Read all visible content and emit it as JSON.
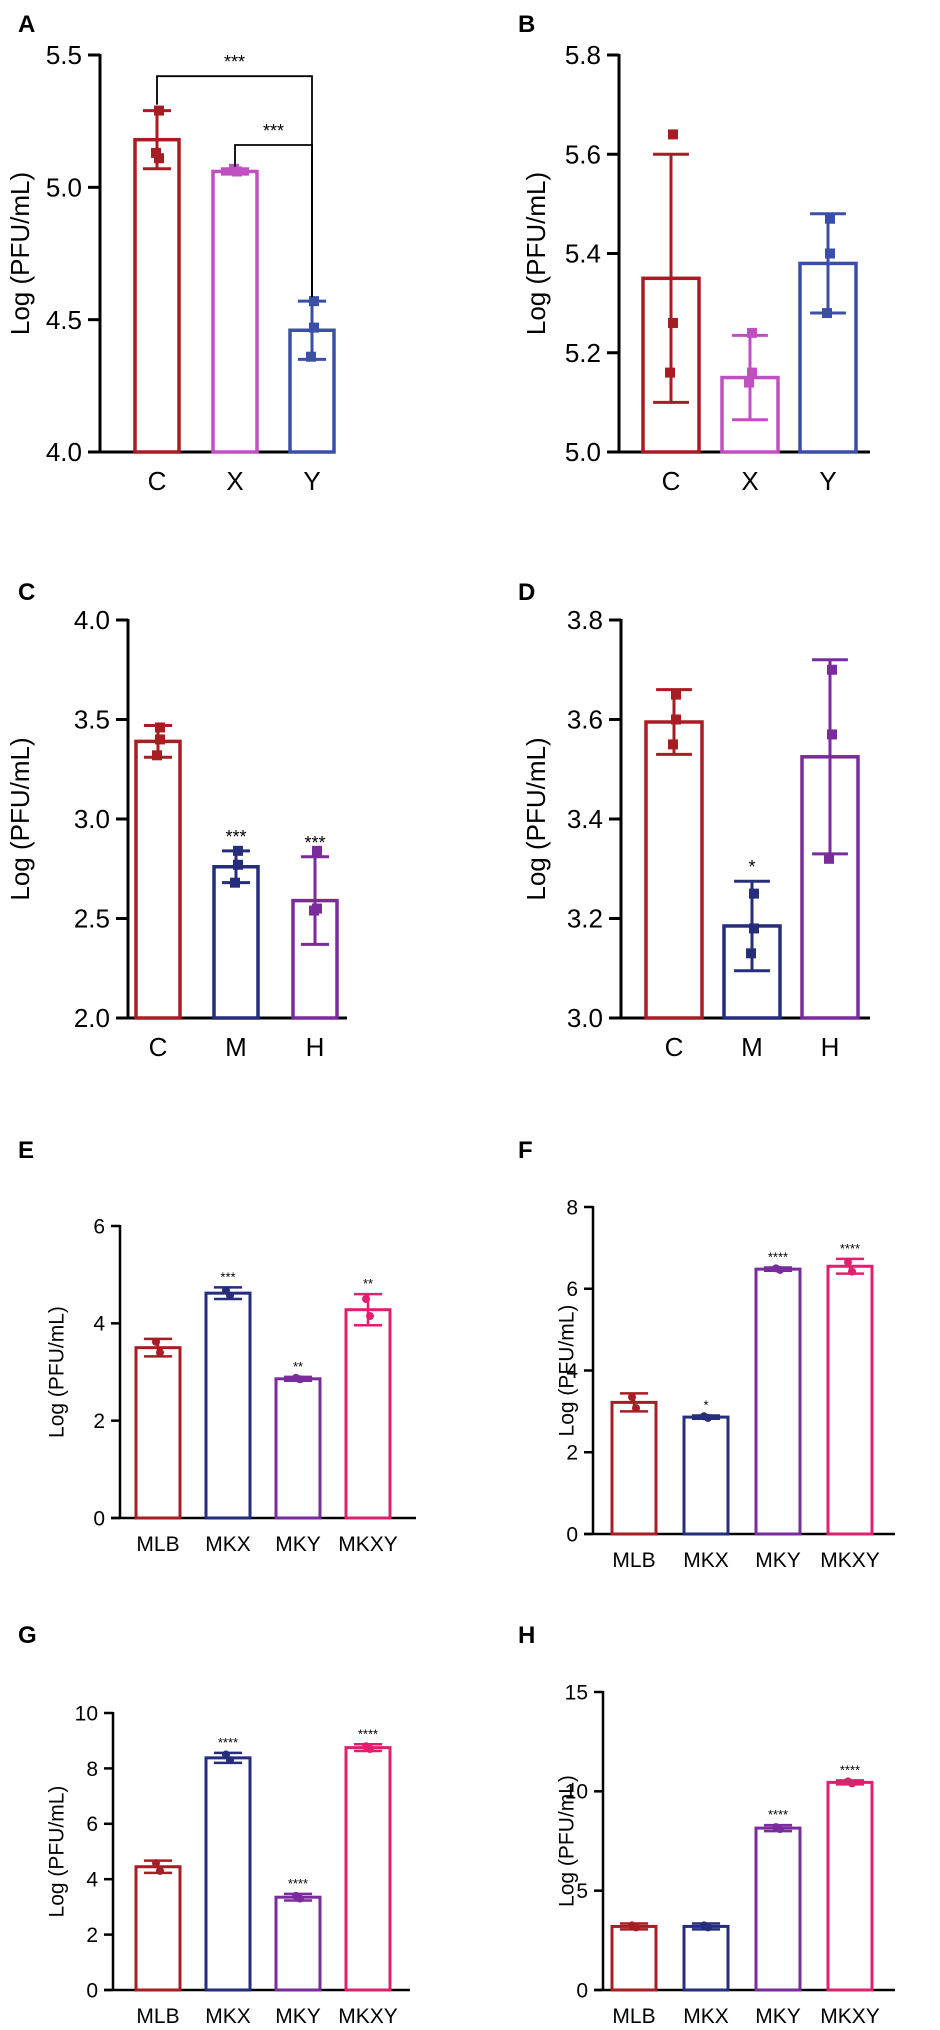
{
  "figure": {
    "colors": {
      "red": "#a81c24",
      "violet": "#c050c0",
      "blue": "#3b4fa8",
      "navy": "#262d7d",
      "purple": "#7a2b9c",
      "pink": "#e0206e",
      "axis": "#000000"
    }
  },
  "chart_data": [
    {
      "panel": "A",
      "type": "bar",
      "title": "",
      "xlabel": "",
      "ylabel": "Log (PFU/mL)",
      "ylim": [
        4.0,
        5.5
      ],
      "yticks": [
        "4.0",
        "4.5",
        "5.0",
        "5.5"
      ],
      "categories": [
        "C",
        "X",
        "Y"
      ],
      "values": [
        5.18,
        5.06,
        4.46
      ],
      "err": [
        0.11,
        0.01,
        0.11
      ],
      "points": [
        [
          5.29,
          5.11,
          5.13
        ],
        [
          5.06,
          5.06,
          5.07
        ],
        [
          4.57,
          4.47,
          4.36
        ]
      ],
      "colors": [
        "#a81c24",
        "#c050c0",
        "#3b4fa8"
      ],
      "brackets": [
        {
          "from": 0,
          "to": 2,
          "level": 5.42,
          "label": "***"
        },
        {
          "from": 1,
          "to": 2,
          "level": 5.16,
          "label": "***"
        }
      ]
    },
    {
      "panel": "B",
      "type": "bar",
      "title": "",
      "xlabel": "",
      "ylabel": "Log (PFU/mL)",
      "ylim": [
        5.0,
        5.8
      ],
      "yticks": [
        "5.0",
        "5.2",
        "5.4",
        "5.6",
        "5.8"
      ],
      "categories": [
        "C",
        "X",
        "Y"
      ],
      "values": [
        5.35,
        5.15,
        5.38
      ],
      "err": [
        0.25,
        0.085,
        0.1
      ],
      "points": [
        [
          5.64,
          5.26,
          5.16
        ],
        [
          5.24,
          5.16,
          5.14
        ],
        [
          5.47,
          5.4,
          5.28
        ]
      ],
      "colors": [
        "#a81c24",
        "#c050c0",
        "#3b4fa8"
      ]
    },
    {
      "panel": "C",
      "type": "bar",
      "title": "",
      "xlabel": "",
      "ylabel": "Log (PFU/mL)",
      "ylim": [
        2.0,
        4.0
      ],
      "yticks": [
        "2.0",
        "2.5",
        "3.0",
        "3.5",
        "4.0"
      ],
      "categories": [
        "C",
        "M",
        "H"
      ],
      "values": [
        3.39,
        2.76,
        2.59
      ],
      "err": [
        0.08,
        0.08,
        0.22
      ],
      "points": [
        [
          3.46,
          3.4,
          3.32
        ],
        [
          2.84,
          2.77,
          2.68
        ],
        [
          2.84,
          2.55,
          2.54
        ]
      ],
      "colors": [
        "#a81c24",
        "#262d7d",
        "#7a2b9c"
      ],
      "sig": [
        "",
        "***",
        "***"
      ]
    },
    {
      "panel": "D",
      "type": "bar",
      "title": "",
      "xlabel": "",
      "ylabel": "Log (PFU/mL)",
      "ylim": [
        3.0,
        3.8
      ],
      "yticks": [
        "3.0",
        "3.2",
        "3.4",
        "3.6",
        "3.8"
      ],
      "categories": [
        "C",
        "M",
        "H"
      ],
      "values": [
        3.595,
        3.185,
        3.525
      ],
      "err": [
        0.065,
        0.09,
        0.195
      ],
      "points": [
        [
          3.65,
          3.6,
          3.55
        ],
        [
          3.25,
          3.18,
          3.13
        ],
        [
          3.7,
          3.57,
          3.32
        ]
      ],
      "colors": [
        "#a81c24",
        "#262d7d",
        "#7a2b9c"
      ],
      "sig": [
        "",
        "*",
        ""
      ]
    },
    {
      "panel": "E",
      "type": "bar",
      "title": "",
      "xlabel": "",
      "ylabel": "Log (PFU/mL)",
      "ylim": [
        0,
        6
      ],
      "yticks": [
        "0",
        "2",
        "4",
        "6"
      ],
      "categories": [
        "MLB",
        "MKX",
        "MKY",
        "MKXY"
      ],
      "values": [
        3.5,
        4.62,
        2.86,
        4.28
      ],
      "err": [
        0.18,
        0.12,
        0.04,
        0.32
      ],
      "points": [
        [
          3.62,
          3.4
        ],
        [
          4.68,
          4.57
        ],
        [
          2.88,
          2.85
        ],
        [
          4.5,
          4.15
        ]
      ],
      "colors": [
        "#a81c24",
        "#262d7d",
        "#7a2b9c",
        "#e0206e"
      ],
      "sig": [
        "",
        "***",
        "**",
        "**"
      ]
    },
    {
      "panel": "F",
      "type": "bar",
      "title": "",
      "xlabel": "",
      "ylabel": "Log (PFU/mL)",
      "ylim": [
        0,
        8
      ],
      "yticks": [
        "0",
        "2",
        "4",
        "6",
        "8"
      ],
      "categories": [
        "MLB",
        "MKX",
        "MKY",
        "MKXY"
      ],
      "values": [
        3.22,
        2.86,
        6.48,
        6.55
      ],
      "err": [
        0.22,
        0.04,
        0.04,
        0.18
      ],
      "points": [
        [
          3.35,
          3.08
        ],
        [
          2.88,
          2.84
        ],
        [
          6.5,
          6.46
        ],
        [
          6.65,
          6.42
        ]
      ],
      "colors": [
        "#a81c24",
        "#262d7d",
        "#7a2b9c",
        "#e0206e"
      ],
      "sig": [
        "",
        "*",
        "****",
        "****"
      ]
    },
    {
      "panel": "G",
      "type": "bar",
      "title": "",
      "xlabel": "",
      "ylabel": "Log (PFU/mL)",
      "ylim": [
        0,
        10
      ],
      "yticks": [
        "0",
        "2",
        "4",
        "6",
        "8",
        "10"
      ],
      "categories": [
        "MLB",
        "MKX",
        "MKY",
        "MKXY"
      ],
      "values": [
        4.45,
        8.38,
        3.35,
        8.75
      ],
      "err": [
        0.22,
        0.18,
        0.12,
        0.12
      ],
      "points": [
        [
          4.58,
          4.3
        ],
        [
          8.5,
          8.3
        ],
        [
          3.4,
          3.3
        ],
        [
          8.8,
          8.7
        ]
      ],
      "colors": [
        "#a81c24",
        "#262d7d",
        "#7a2b9c",
        "#e0206e"
      ],
      "sig": [
        "",
        "****",
        "****",
        "****"
      ]
    },
    {
      "panel": "H",
      "type": "bar",
      "title": "",
      "xlabel": "",
      "ylabel": "Log (PFU/mL)",
      "ylim": [
        0,
        15
      ],
      "yticks": [
        "0",
        "5",
        "10",
        "15"
      ],
      "categories": [
        "MLB",
        "MKX",
        "MKY",
        "MKXY"
      ],
      "values": [
        3.2,
        3.2,
        8.15,
        10.45
      ],
      "err": [
        0.15,
        0.15,
        0.15,
        0.1
      ],
      "points": [
        [
          3.25,
          3.15
        ],
        [
          3.25,
          3.15
        ],
        [
          8.2,
          8.1
        ],
        [
          10.5,
          10.4
        ]
      ],
      "colors": [
        "#a81c24",
        "#262d7d",
        "#7a2b9c",
        "#e0206e"
      ],
      "sig": [
        "",
        "",
        "****",
        "****"
      ]
    }
  ]
}
